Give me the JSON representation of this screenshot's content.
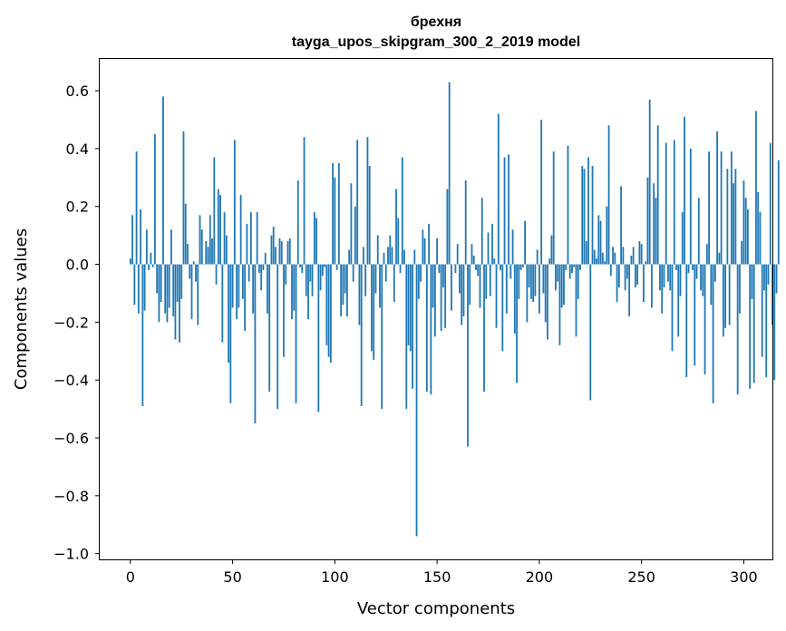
{
  "chart_data": {
    "type": "bar",
    "title": "брехня",
    "subtitle": "tayga_upos_skipgram_300_2_2019 model",
    "xlabel": "Vector components",
    "ylabel": "Components values",
    "xlim": [
      -15,
      314
    ],
    "ylim": [
      -1.02,
      0.71
    ],
    "xticks": [
      0,
      50,
      100,
      150,
      200,
      250,
      300
    ],
    "yticks": [
      0.6,
      0.4,
      0.2,
      0.0,
      -0.2,
      -0.4,
      -0.6,
      -0.8,
      -1.0
    ],
    "ytick_labels": [
      "0.6",
      "0.4",
      "0.2",
      "0.0",
      "−0.2",
      "−0.4",
      "−0.6",
      "−0.8",
      "−1.0"
    ],
    "grid": false,
    "bar_color": "#1f77b4",
    "values": [
      0.02,
      0.17,
      -0.14,
      0.39,
      -0.17,
      0.19,
      -0.49,
      -0.16,
      0.12,
      -0.02,
      0.04,
      -0.01,
      0.45,
      -0.1,
      -0.2,
      -0.13,
      0.58,
      -0.17,
      -0.2,
      -0.15,
      0.12,
      -0.18,
      -0.26,
      -0.13,
      -0.27,
      -0.12,
      0.46,
      0.21,
      0.07,
      -0.05,
      -0.19,
      0.01,
      -0.06,
      -0.21,
      0.17,
      0.12,
      0.0,
      0.08,
      0.06,
      0.17,
      0.09,
      0.37,
      -0.07,
      0.26,
      0.24,
      -0.27,
      0.18,
      0.1,
      -0.34,
      -0.48,
      -0.15,
      0.43,
      -0.19,
      -0.15,
      0.24,
      -0.12,
      -0.23,
      0.14,
      -0.06,
      0.18,
      -0.17,
      -0.55,
      0.18,
      -0.03,
      -0.09,
      -0.02,
      0.04,
      -0.17,
      -0.44,
      0.1,
      0.13,
      0.06,
      -0.5,
      0.09,
      0.08,
      -0.32,
      -0.07,
      0.08,
      0.09,
      -0.19,
      -0.16,
      -0.48,
      0.29,
      -0.01,
      -0.03,
      0.44,
      -0.11,
      -0.19,
      -0.06,
      -0.11,
      0.18,
      0.16,
      -0.51,
      -0.09,
      -0.04,
      -0.01,
      -0.28,
      -0.32,
      -0.34,
      0.35,
      0.3,
      -0.02,
      0.35,
      -0.18,
      -0.14,
      -0.1,
      -0.18,
      0.05,
      0.28,
      -0.06,
      0.2,
      0.43,
      -0.21,
      -0.49,
      0.06,
      -0.11,
      0.44,
      0.34,
      -0.3,
      -0.33,
      -0.1,
      0.1,
      -0.15,
      -0.5,
      0.04,
      -0.06,
      0.06,
      0.1,
      0.06,
      -0.13,
      0.26,
      0.16,
      -0.03,
      0.37,
      0.05,
      -0.5,
      -0.28,
      -0.3,
      -0.43,
      0.05,
      -0.94,
      -0.12,
      -0.06,
      0.12,
      0.09,
      -0.44,
      0.14,
      -0.45,
      -0.15,
      -0.25,
      0.09,
      -0.03,
      -0.23,
      -0.08,
      -0.22,
      0.26,
      0.63,
      -0.16,
      0.0,
      -0.03,
      0.07,
      -0.1,
      -0.21,
      -0.18,
      0.29,
      -0.63,
      -0.14,
      0.07,
      0.03,
      -0.02,
      -0.04,
      -0.15,
      0.23,
      -0.44,
      -0.12,
      0.11,
      -0.11,
      0.14,
      0.02,
      -0.22,
      0.52,
      -0.02,
      -0.3,
      0.37,
      -0.17,
      0.38,
      -0.05,
      0.12,
      -0.24,
      -0.41,
      -0.12,
      -0.02,
      -0.01,
      0.15,
      -0.2,
      -0.08,
      -0.12,
      -0.13,
      -0.11,
      0.05,
      -0.17,
      0.5,
      -0.1,
      -0.2,
      -0.26,
      0.02,
      0.1,
      0.39,
      -0.09,
      -0.06,
      -0.28,
      -0.15,
      -0.14,
      -0.02,
      0.41,
      -0.05,
      -0.03,
      -0.01,
      -0.25,
      -0.12,
      -0.02,
      0.34,
      0.33,
      0.08,
      0.37,
      -0.47,
      0.34,
      0.05,
      0.02,
      0.17,
      0.15,
      0.04,
      0.01,
      0.2,
      0.48,
      -0.04,
      0.06,
      0.04,
      -0.13,
      -0.08,
      0.27,
      0.06,
      -0.09,
      -0.05,
      -0.18,
      0.03,
      0.06,
      -0.08,
      -0.07,
      0.08,
      0.07,
      -0.13,
      0.01,
      0.3,
      0.57,
      -0.15,
      0.28,
      0.23,
      0.48,
      -0.09,
      -0.17,
      -0.08,
      0.42,
      -0.06,
      -0.09,
      -0.3,
      0.43,
      -0.02,
      -0.25,
      -0.11,
      0.18,
      0.51,
      -0.39,
      -0.03,
      0.4,
      -0.02,
      -0.35,
      -0.05,
      0.23,
      -0.09,
      -0.11,
      -0.38,
      0.07,
      0.39,
      -0.14,
      -0.48,
      -0.06,
      0.46,
      0.04,
      0.39,
      -0.25,
      -0.22,
      0.33,
      -0.21,
      0.39,
      0.28,
      0.33,
      -0.45,
      -0.17,
      0.08,
      0.29,
      0.23,
      0.19,
      -0.43,
      -0.12,
      -0.41,
      0.53,
      0.25,
      0.18,
      -0.32,
      -0.09,
      -0.39,
      -0.07,
      0.42,
      -0.21,
      -0.4,
      -0.1,
      0.36
    ]
  }
}
